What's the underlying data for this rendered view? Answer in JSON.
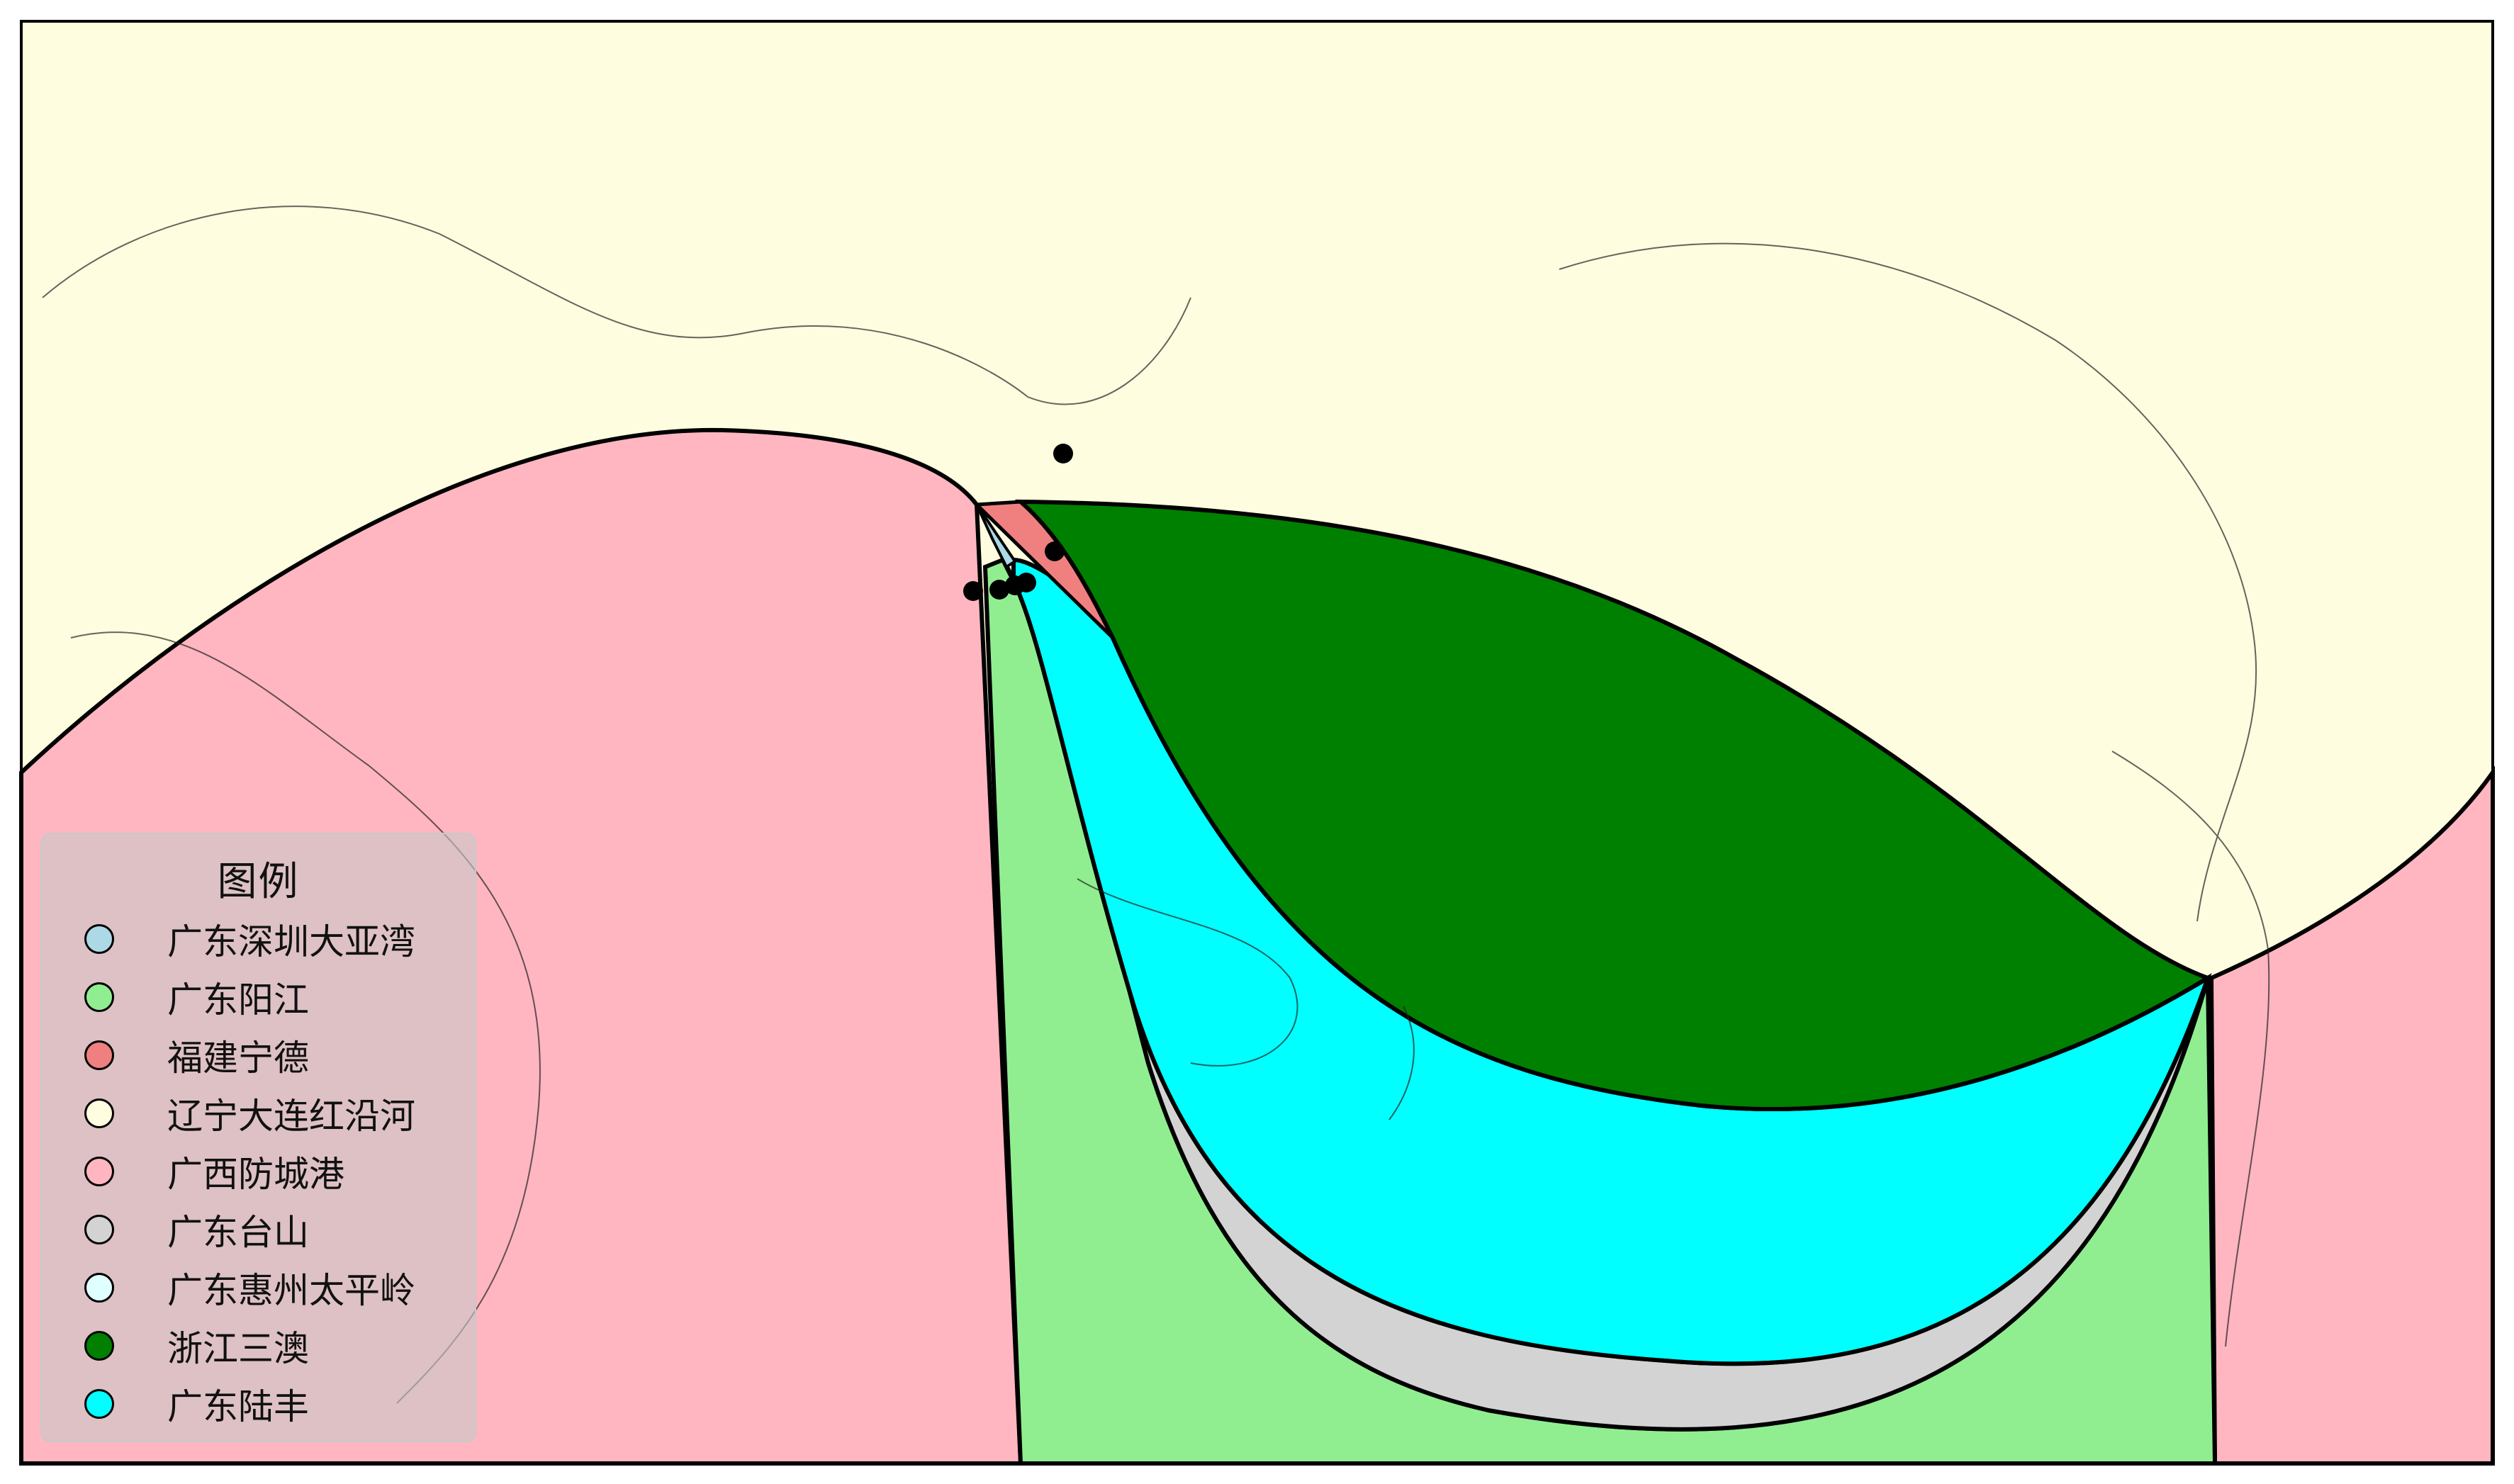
{
  "legend": {
    "title": "图例",
    "items": [
      {
        "label": "广东深圳大亚湾",
        "color": "#add8e6"
      },
      {
        "label": "广东阳江",
        "color": "#90ee90"
      },
      {
        "label": "福建宁德",
        "color": "#f08080"
      },
      {
        "label": "辽宁大连红沿河",
        "color": "#fffde0"
      },
      {
        "label": "广西防城港",
        "color": "#ffb6c1"
      },
      {
        "label": "广东台山",
        "color": "#d3d3d3"
      },
      {
        "label": "广东惠州太平岭",
        "color": "#e0ffff"
      },
      {
        "label": "浙江三澳",
        "color": "#008000"
      },
      {
        "label": "广东陆丰",
        "color": "#00ffff"
      }
    ]
  },
  "colors": {
    "ocean": "#ffffff",
    "land_base": "#fffde0",
    "border": "#000000",
    "site_marker": "#000000"
  }
}
